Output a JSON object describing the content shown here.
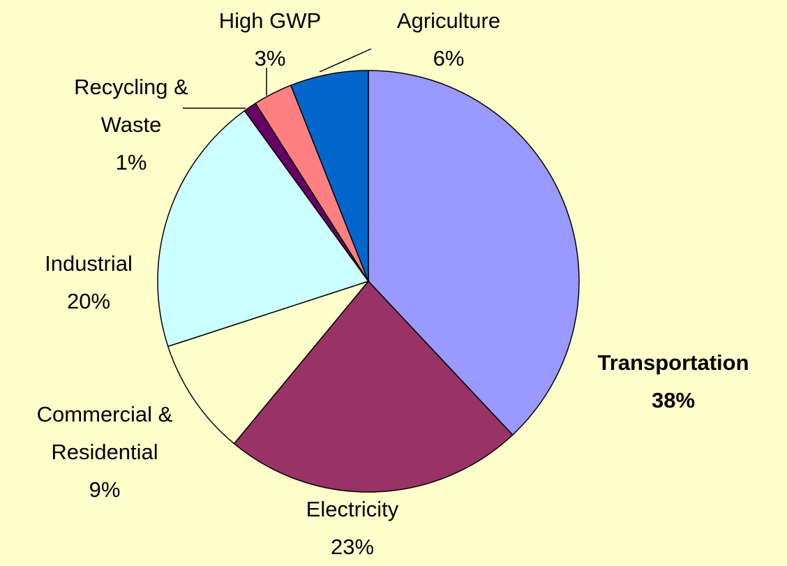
{
  "chart_data": {
    "type": "pie",
    "categories": [
      "Transportation",
      "Electricity",
      "Commercial & Residential",
      "Industrial",
      "Recycling & Waste",
      "High GWP",
      "Agriculture"
    ],
    "values": [
      38,
      23,
      9,
      20,
      1,
      3,
      6
    ],
    "value_labels": [
      "38%",
      "23%",
      "9%",
      "20%",
      "1%",
      "3%",
      "6%"
    ],
    "colors": [
      "#9999ff",
      "#993366",
      "#ffffcc",
      "#ccffff",
      "#660066",
      "#ff8080",
      "#0066cc"
    ]
  }
}
